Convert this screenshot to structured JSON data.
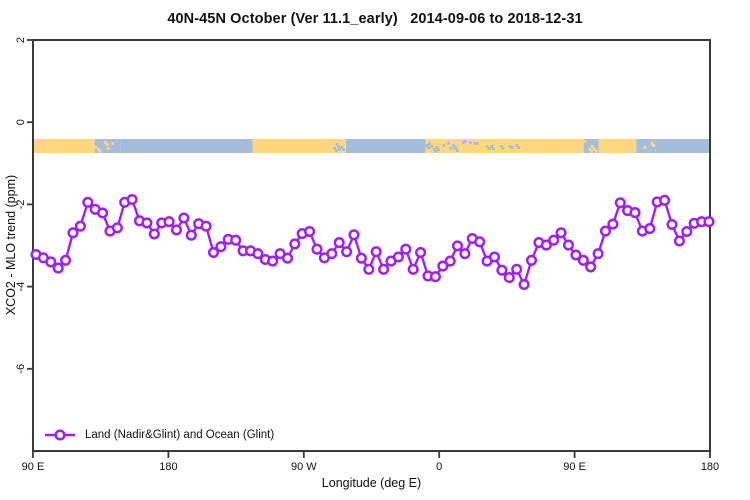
{
  "chart_data": {
    "type": "line",
    "title": "40N-45N October (Ver 11.1_early)   2014-09-06 to 2018-12-31",
    "xlabel": "Longitude (deg E)",
    "ylabel": "XCO2 - MLO trend (ppm)",
    "grid": false,
    "x_axis": {
      "domain_deg_east_of_90E": [
        0,
        450
      ],
      "ticks": [
        {
          "deg": 0,
          "label": "90 E"
        },
        {
          "deg": 90,
          "label": "180"
        },
        {
          "deg": 180,
          "label": "90 W"
        },
        {
          "deg": 270,
          "label": "0"
        },
        {
          "deg": 360,
          "label": "90 E"
        },
        {
          "deg": 450,
          "label": "180"
        }
      ]
    },
    "y_axis": {
      "domain": [
        -8,
        2
      ],
      "ticks": [
        2,
        0,
        -2,
        -4,
        -6
      ]
    },
    "legend": {
      "position": "bottom-left",
      "entries": [
        "Land (Nadir&Glint) and Ocean (Glint)"
      ]
    },
    "series": [
      {
        "name": "Land (Nadir&Glint) and Ocean (Glint)",
        "color": "#A020F0",
        "marker": "open-circle",
        "x_start_deg": 2.0,
        "x_end_deg": 449.5,
        "values_ppm": [
          -3.22,
          -3.3,
          -3.4,
          -3.55,
          -3.36,
          -2.69,
          -2.53,
          -1.95,
          -2.12,
          -2.21,
          -2.65,
          -2.57,
          -1.95,
          -1.88,
          -2.4,
          -2.45,
          -2.72,
          -2.45,
          -2.42,
          -2.62,
          -2.33,
          -2.75,
          -2.47,
          -2.53,
          -3.17,
          -3.03,
          -2.85,
          -2.87,
          -3.13,
          -3.13,
          -3.2,
          -3.34,
          -3.38,
          -3.2,
          -3.31,
          -2.96,
          -2.71,
          -2.66,
          -3.09,
          -3.3,
          -3.2,
          -2.93,
          -3.15,
          -2.74,
          -3.31,
          -3.58,
          -3.15,
          -3.58,
          -3.38,
          -3.28,
          -3.09,
          -3.58,
          -3.17,
          -3.74,
          -3.76,
          -3.5,
          -3.38,
          -3.01,
          -3.2,
          -2.83,
          -2.91,
          -3.38,
          -3.28,
          -3.6,
          -3.78,
          -3.58,
          -3.95,
          -3.36,
          -2.93,
          -2.99,
          -2.87,
          -2.69,
          -2.99,
          -3.23,
          -3.36,
          -3.52,
          -3.2,
          -2.65,
          -2.48,
          -1.96,
          -2.15,
          -2.2,
          -2.65,
          -2.59,
          -1.94,
          -1.9,
          -2.49,
          -2.89,
          -2.66,
          -2.46,
          -2.42,
          -2.42
        ]
      }
    ],
    "surface_band": {
      "description": "land/ocean strip map for the 40N-45N latitude zone",
      "y_center_ppm": -0.58,
      "land_color": "#FFD781",
      "ocean_color": "#A6BCDB",
      "segments": [
        {
          "from_deg": 0,
          "to_deg": 41,
          "surface": "land"
        },
        {
          "from_deg": 41,
          "to_deg": 58,
          "surface": "coast-ocean"
        },
        {
          "from_deg": 58,
          "to_deg": 146,
          "surface": "ocean"
        },
        {
          "from_deg": 146,
          "to_deg": 198,
          "surface": "land"
        },
        {
          "from_deg": 198,
          "to_deg": 208,
          "surface": "coast-land"
        },
        {
          "from_deg": 208,
          "to_deg": 261,
          "surface": "ocean"
        },
        {
          "from_deg": 261,
          "to_deg": 314,
          "surface": "coast-land"
        },
        {
          "from_deg": 314,
          "to_deg": 316,
          "surface": "land"
        },
        {
          "from_deg": 316,
          "to_deg": 324,
          "surface": "coast-land"
        },
        {
          "from_deg": 324,
          "to_deg": 366,
          "surface": "land"
        },
        {
          "from_deg": 366,
          "to_deg": 376,
          "surface": "coast-ocean"
        },
        {
          "from_deg": 376,
          "to_deg": 401,
          "surface": "land"
        },
        {
          "from_deg": 401,
          "to_deg": 414,
          "surface": "coast-ocean"
        },
        {
          "from_deg": 414,
          "to_deg": 450,
          "surface": "ocean"
        }
      ]
    }
  },
  "colors": {
    "line": "#A020F0",
    "axis": "#3A3A3A",
    "text": "#111111",
    "background": "#FFFFFF",
    "land": "#FFD781",
    "ocean": "#A6BCDB"
  }
}
